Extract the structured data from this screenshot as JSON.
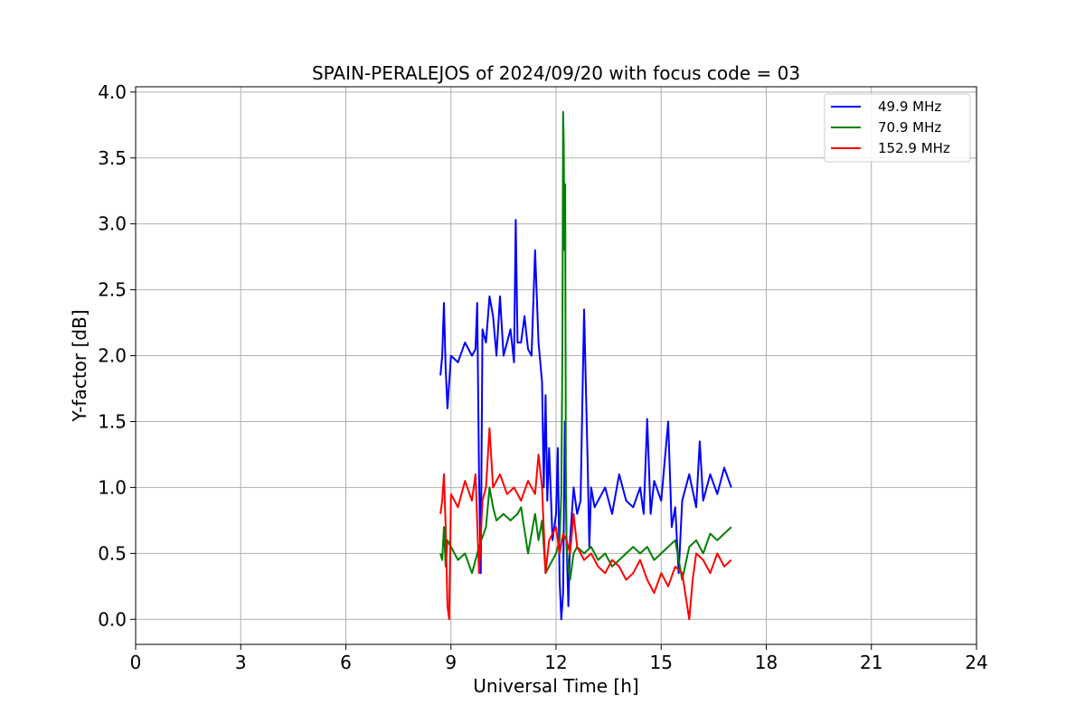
{
  "chart_data": {
    "type": "line",
    "title": "SPAIN-PERALEJOS of 2024/09/20 with focus code = 03",
    "xlabel": "Universal Time [h]",
    "ylabel": "Y-factor [dB]",
    "xlim": [
      0,
      24
    ],
    "ylim": [
      -0.19,
      4.04
    ],
    "xticks": [
      "0",
      "3",
      "6",
      "9",
      "12",
      "15",
      "18",
      "21",
      "24"
    ],
    "yticks": [
      "0.0",
      "0.5",
      "1.0",
      "1.5",
      "2.0",
      "2.5",
      "3.0",
      "3.5",
      "4.0"
    ],
    "grid": true,
    "legend_position": "top-right",
    "series": [
      {
        "name": "49.9 MHz",
        "color": "#0000ff",
        "x": [
          8.7,
          8.75,
          8.8,
          8.85,
          8.9,
          9.0,
          9.2,
          9.4,
          9.6,
          9.7,
          9.75,
          9.8,
          9.85,
          9.9,
          10.0,
          10.1,
          10.2,
          10.3,
          10.4,
          10.5,
          10.6,
          10.7,
          10.8,
          10.85,
          10.9,
          11.0,
          11.1,
          11.2,
          11.3,
          11.4,
          11.5,
          11.6,
          11.65,
          11.7,
          11.75,
          11.8,
          11.9,
          12.0,
          12.05,
          12.1,
          12.15,
          12.2,
          12.25,
          12.3,
          12.35,
          12.4,
          12.5,
          12.6,
          12.7,
          12.8,
          12.9,
          12.95,
          13.0,
          13.1,
          13.2,
          13.4,
          13.6,
          13.8,
          14.0,
          14.2,
          14.4,
          14.5,
          14.6,
          14.7,
          14.8,
          15.0,
          15.2,
          15.3,
          15.4,
          15.5,
          15.6,
          15.8,
          16.0,
          16.1,
          16.2,
          16.4,
          16.6,
          16.8,
          17.0
        ],
        "y": [
          1.85,
          2.0,
          2.4,
          1.9,
          1.6,
          2.0,
          1.95,
          2.1,
          2.0,
          2.05,
          2.4,
          1.1,
          0.35,
          2.2,
          2.1,
          2.45,
          2.3,
          2.0,
          2.45,
          2.0,
          2.1,
          2.2,
          1.95,
          3.03,
          2.1,
          2.1,
          2.3,
          2.05,
          2.0,
          2.8,
          2.1,
          1.8,
          1.0,
          1.7,
          0.9,
          1.3,
          0.6,
          0.8,
          1.3,
          0.3,
          0.0,
          0.2,
          1.5,
          0.6,
          0.1,
          0.6,
          1.0,
          0.8,
          0.9,
          2.35,
          1.2,
          0.55,
          1.0,
          0.85,
          0.9,
          1.0,
          0.8,
          1.1,
          0.9,
          0.85,
          1.0,
          0.8,
          1.52,
          0.8,
          1.05,
          0.9,
          1.5,
          0.7,
          0.85,
          0.35,
          0.9,
          1.1,
          0.85,
          1.35,
          0.9,
          1.1,
          0.95,
          1.15,
          1.0
        ]
      },
      {
        "name": "70.9 MHz",
        "color": "#008000",
        "x": [
          8.7,
          8.75,
          8.8,
          8.85,
          8.9,
          9.0,
          9.2,
          9.4,
          9.6,
          9.8,
          10.0,
          10.1,
          10.2,
          10.3,
          10.5,
          10.7,
          10.9,
          11.0,
          11.2,
          11.4,
          11.5,
          11.6,
          11.7,
          11.8,
          11.9,
          12.0,
          12.1,
          12.15,
          12.18,
          12.2,
          12.22,
          12.24,
          12.26,
          12.28,
          12.3,
          12.35,
          12.4,
          12.5,
          12.6,
          12.8,
          13.0,
          13.2,
          13.4,
          13.6,
          13.8,
          14.0,
          14.2,
          14.4,
          14.6,
          14.8,
          15.0,
          15.2,
          15.4,
          15.6,
          15.8,
          16.0,
          16.2,
          16.4,
          16.6,
          16.8,
          17.0
        ],
        "y": [
          0.5,
          0.45,
          0.7,
          0.4,
          0.6,
          0.55,
          0.45,
          0.5,
          0.35,
          0.55,
          0.7,
          1.0,
          0.85,
          0.75,
          0.8,
          0.75,
          0.8,
          0.85,
          0.5,
          0.8,
          0.6,
          0.75,
          0.35,
          0.4,
          0.45,
          0.5,
          0.6,
          0.95,
          2.0,
          3.85,
          3.6,
          2.8,
          3.3,
          1.2,
          0.55,
          0.4,
          0.3,
          0.5,
          0.55,
          0.5,
          0.55,
          0.45,
          0.5,
          0.4,
          0.45,
          0.5,
          0.55,
          0.5,
          0.55,
          0.45,
          0.5,
          0.55,
          0.6,
          0.3,
          0.55,
          0.6,
          0.5,
          0.65,
          0.6,
          0.65,
          0.7
        ]
      },
      {
        "name": "152.9 MHz",
        "color": "#ff0000",
        "x": [
          8.7,
          8.75,
          8.8,
          8.85,
          8.9,
          8.95,
          9.0,
          9.2,
          9.4,
          9.6,
          9.7,
          9.8,
          9.9,
          10.0,
          10.1,
          10.2,
          10.4,
          10.6,
          10.8,
          11.0,
          11.2,
          11.4,
          11.5,
          11.6,
          11.7,
          11.8,
          12.0,
          12.1,
          12.2,
          12.3,
          12.4,
          12.5,
          12.6,
          12.8,
          13.0,
          13.2,
          13.4,
          13.6,
          13.8,
          14.0,
          14.2,
          14.4,
          14.6,
          14.8,
          15.0,
          15.2,
          15.4,
          15.6,
          15.8,
          15.9,
          16.0,
          16.2,
          16.4,
          16.6,
          16.8,
          17.0
        ],
        "y": [
          0.8,
          0.9,
          1.1,
          0.7,
          0.1,
          0.0,
          0.95,
          0.85,
          1.05,
          0.9,
          1.1,
          0.35,
          0.9,
          1.0,
          1.45,
          1.0,
          1.1,
          0.95,
          1.0,
          0.9,
          1.05,
          0.95,
          1.25,
          1.0,
          0.35,
          0.6,
          0.7,
          0.5,
          0.65,
          0.6,
          0.5,
          0.8,
          0.55,
          0.45,
          0.5,
          0.4,
          0.35,
          0.45,
          0.4,
          0.3,
          0.35,
          0.45,
          0.3,
          0.2,
          0.35,
          0.25,
          0.4,
          0.35,
          0.0,
          0.3,
          0.5,
          0.45,
          0.35,
          0.5,
          0.4,
          0.45
        ]
      }
    ]
  }
}
